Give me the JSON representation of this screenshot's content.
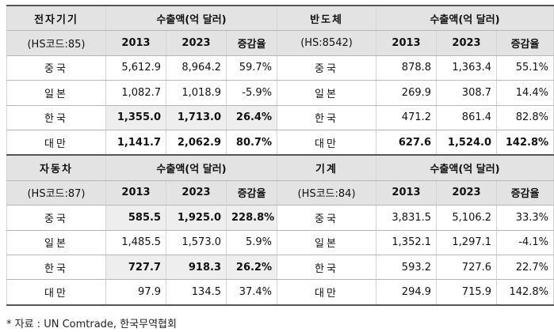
{
  "headers": {
    "export_label": "수출액(억 달러)",
    "years": [
      "2013",
      "2023",
      "증감율"
    ]
  },
  "sections": [
    {
      "name": "전자기기",
      "code": "(HS코드:85)",
      "rows": [
        {
          "country": "중국",
          "v2013": "5,612.9",
          "v2023": "8,964.2",
          "change": "59.7%"
        },
        {
          "country": "일본",
          "v2013": "1,082.7",
          "v2023": "1,018.9",
          "change": "-5.9%"
        },
        {
          "country": "한국",
          "v2013": "1,355.0",
          "v2023": "1,713.0",
          "change": "26.4%"
        },
        {
          "country": "대만",
          "v2013": "1,141.7",
          "v2023": "2,062.9",
          "change": "80.7%"
        }
      ]
    },
    {
      "name": "반도체",
      "code": "(HS:8542)",
      "rows": [
        {
          "country": "중국",
          "v2013": "878.8",
          "v2023": "1,363.4",
          "change": "55.1%"
        },
        {
          "country": "일본",
          "v2013": "269.9",
          "v2023": "308.7",
          "change": "14.4%"
        },
        {
          "country": "한국",
          "v2013": "471.2",
          "v2023": "861.4",
          "change": "82.8%"
        },
        {
          "country": "대만",
          "v2013": "627.6",
          "v2023": "1,524.0",
          "change": "142.8%"
        }
      ]
    },
    {
      "name": "자동차",
      "code": "(HS코드:87)",
      "rows": [
        {
          "country": "중국",
          "v2013": "585.5",
          "v2023": "1,925.0",
          "change": "228.8%"
        },
        {
          "country": "일본",
          "v2013": "1,485.5",
          "v2023": "1,573.0",
          "change": "5.9%"
        },
        {
          "country": "한국",
          "v2013": "727.7",
          "v2023": "918.3",
          "change": "26.2%"
        },
        {
          "country": "대만",
          "v2013": "97.9",
          "v2023": "134.5",
          "change": "37.4%"
        }
      ]
    },
    {
      "name": "기계",
      "code": "(HS코드:84)",
      "rows": [
        {
          "country": "중국",
          "v2013": "3,831.5",
          "v2023": "5,106.2",
          "change": "33.3%"
        },
        {
          "country": "일본",
          "v2013": "1,352.1",
          "v2023": "1,297.1",
          "change": "-4.1%"
        },
        {
          "country": "한국",
          "v2013": "593.2",
          "v2023": "727.6",
          "change": "22.7%"
        },
        {
          "country": "대만",
          "v2013": "294.9",
          "v2023": "715.9",
          "change": "142.8%"
        }
      ]
    }
  ],
  "source": "* 자료 : UN Comtrade, 한국무역협회"
}
